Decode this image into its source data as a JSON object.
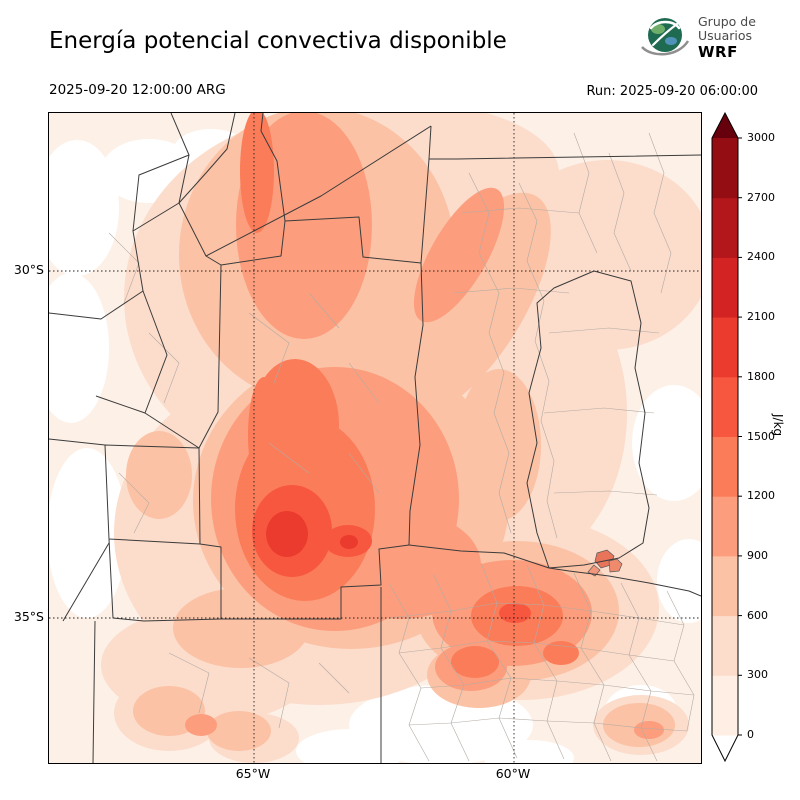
{
  "header": {
    "title": "Energía potencial convectiva disponible",
    "logo": {
      "line1": "Grupo de",
      "line2": "Usuarios",
      "line3": "WRF"
    }
  },
  "times": {
    "valid": "2025-09-20 12:00:00 ARG",
    "run": "Run: 2025-09-20 06:00:00"
  },
  "axes": {
    "lat_labels": [
      "30°S",
      "35°S"
    ],
    "lon_labels": [
      "65°W",
      "60°W"
    ]
  },
  "colorbar": {
    "unit": "J/kg",
    "tick_values": [
      "0",
      "300",
      "600",
      "900",
      "1200",
      "1500",
      "1800",
      "2100",
      "2400",
      "2700",
      "3000"
    ],
    "interval_colors_bottom_to_top": [
      "#feeee3",
      "#fcdccb",
      "#fbc2a5",
      "#fc9e7e",
      "#fb7c59",
      "#f8573f",
      "#ea3b2e",
      "#d32423",
      "#b3161b",
      "#930d13"
    ],
    "under_color": "#ffffff",
    "over_color": "#67000d"
  }
}
